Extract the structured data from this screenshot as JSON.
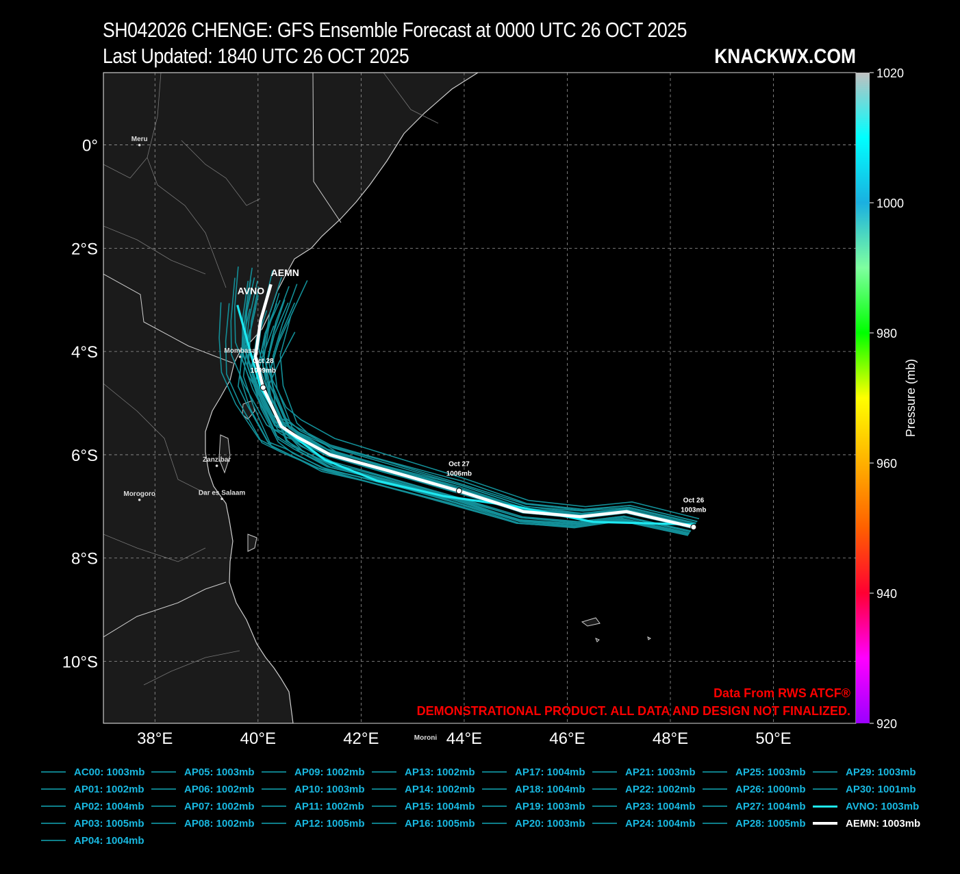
{
  "header": {
    "title": "SH042026 CHENGE: GFS Ensemble Forecast at 0000 UTC 26 OCT 2025",
    "subtitle": "Last Updated: 1840 UTC 26 OCT 2025",
    "brand": "KNACKWX.COM"
  },
  "map": {
    "lat_labels": [
      "0°",
      "2°S",
      "4°S",
      "6°S",
      "8°S",
      "10°S"
    ],
    "lon_labels": [
      "38°E",
      "40°E",
      "42°E",
      "44°E",
      "46°E",
      "48°E",
      "50°E"
    ],
    "lat_range": [
      -11.2,
      1.4
    ],
    "lon_range": [
      37.0,
      51.6
    ],
    "cities": [
      {
        "name": "Meru",
        "lat": 0.05,
        "lon": 37.7
      },
      {
        "name": "Mombasa",
        "lat": -4.05,
        "lon": 39.65
      },
      {
        "name": "Zanzibar",
        "lat": -6.16,
        "lon": 39.2
      },
      {
        "name": "Morogoro",
        "lat": -6.82,
        "lon": 37.7
      },
      {
        "name": "Dar es Salaam",
        "lat": -6.8,
        "lon": 39.3
      },
      {
        "name": "Moroni",
        "lat": -11.7,
        "lon": 43.25
      }
    ],
    "credit_line1": "Data From RWS ATCF®",
    "credit_line2": "DEMONSTRATIONAL PRODUCT. ALL DATA AND DESIGN NOT FINALIZED."
  },
  "colorbar": {
    "label": "Pressure (mb)",
    "ticks": [
      "1020",
      "1000",
      "980",
      "960",
      "940",
      "920"
    ],
    "range": [
      920,
      1020
    ],
    "colors": [
      "#9b00ff",
      "#ff00ff",
      "#ff0033",
      "#ff6000",
      "#ffb000",
      "#ffff00",
      "#00ff00",
      "#7fffa0",
      "#1ab0e0",
      "#00ffff",
      "#c0c0c0"
    ]
  },
  "tracks": {
    "aemn": {
      "name": "AEMN",
      "color": "#ffffff",
      "points": [
        {
          "lon": 48.45,
          "lat": -7.4
        },
        {
          "lon": 47.15,
          "lat": -7.1
        },
        {
          "lon": 46.25,
          "lat": -7.2
        },
        {
          "lon": 45.15,
          "lat": -7.1
        },
        {
          "lon": 43.9,
          "lat": -6.7
        },
        {
          "lon": 42.5,
          "lat": -6.3
        },
        {
          "lon": 41.4,
          "lat": -6.0
        },
        {
          "lon": 40.75,
          "lat": -5.65
        },
        {
          "lon": 40.45,
          "lat": -5.45
        },
        {
          "lon": 40.1,
          "lat": -4.7
        },
        {
          "lon": 39.95,
          "lat": -4.1
        },
        {
          "lon": 40.05,
          "lat": -3.4
        },
        {
          "lon": 40.25,
          "lat": -2.7
        }
      ],
      "markers": [
        {
          "lon": 48.45,
          "lat": -7.4,
          "date": "Oct 26",
          "pressure": "1003mb"
        },
        {
          "lon": 43.9,
          "lat": -6.7,
          "date": "Oct 27",
          "pressure": "1006mb"
        },
        {
          "lon": 40.1,
          "lat": -4.7,
          "date": "Oct 28",
          "pressure": "1009mb"
        }
      ]
    },
    "avno": {
      "name": "AVNO",
      "color": "#1ee8f0",
      "points": [
        {
          "lon": 48.45,
          "lat": -7.35
        },
        {
          "lon": 46.5,
          "lat": -7.3
        },
        {
          "lon": 45.0,
          "lat": -7.0
        },
        {
          "lon": 43.6,
          "lat": -6.8
        },
        {
          "lon": 42.3,
          "lat": -6.5
        },
        {
          "lon": 41.3,
          "lat": -6.1
        },
        {
          "lon": 40.5,
          "lat": -5.5
        },
        {
          "lon": 40.05,
          "lat": -4.7
        },
        {
          "lon": 39.85,
          "lat": -4.0
        },
        {
          "lon": 39.6,
          "lat": -3.1
        }
      ]
    }
  },
  "legend": {
    "columns": [
      [
        "AC00: 1003mb",
        "AP01: 1002mb",
        "AP02: 1004mb",
        "AP03: 1005mb",
        "AP04: 1004mb"
      ],
      [
        "AP05: 1003mb",
        "AP06: 1002mb",
        "AP07: 1002mb",
        "AP08: 1002mb"
      ],
      [
        "AP09: 1002mb",
        "AP10: 1003mb",
        "AP11: 1002mb",
        "AP12: 1005mb"
      ],
      [
        "AP13: 1002mb",
        "AP14: 1002mb",
        "AP15: 1004mb",
        "AP16: 1005mb"
      ],
      [
        "AP17: 1004mb",
        "AP18: 1004mb",
        "AP19: 1003mb",
        "AP20: 1003mb"
      ],
      [
        "AP21: 1003mb",
        "AP22: 1002mb",
        "AP23: 1004mb",
        "AP24: 1004mb"
      ],
      [
        "AP25: 1003mb",
        "AP26: 1000mb",
        "AP27: 1004mb",
        "AP28: 1005mb"
      ],
      [
        "AP29: 1003mb",
        "AP30: 1001mb",
        "AVNO: 1003mb",
        "AEMN: 1003mb"
      ]
    ]
  }
}
